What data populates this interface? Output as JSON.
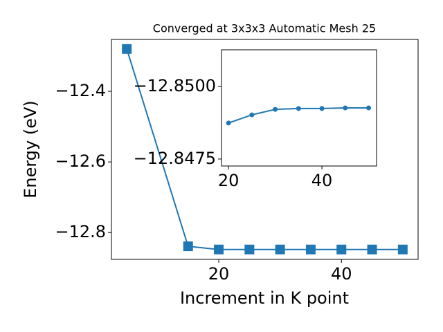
{
  "chart_data": [
    {
      "type": "line",
      "title": "Converged at 3x3x3 Automatic Mesh 25",
      "x_label": "Increment in K point",
      "y_label": "Energy (eV)",
      "marker": "square",
      "color": "#1f77b4",
      "x": [
        5,
        15,
        20,
        25,
        30,
        35,
        40,
        45,
        50
      ],
      "values": [
        -12.28,
        -12.839,
        -12.848,
        -12.848,
        -12.848,
        -12.848,
        -12.848,
        -12.848,
        -12.848
      ],
      "xlim": [
        2.5,
        52.5
      ],
      "ylim": [
        -12.876,
        -12.253
      ],
      "xticks": [
        20,
        40
      ],
      "yticks": [
        {
          "value": -12.4,
          "label": "−12.4"
        },
        {
          "value": -12.6,
          "label": "−12.6"
        },
        {
          "value": -12.8,
          "label": "−12.8"
        }
      ]
    },
    {
      "type": "line",
      "marker": "circle",
      "color": "#1f77b4",
      "x": [
        20,
        25,
        30,
        35,
        40,
        45,
        50
      ],
      "values": [
        -12.84874,
        -12.84902,
        -12.84921,
        -12.84924,
        -12.84924,
        -12.84926,
        -12.84926
      ],
      "xlim": [
        18.5,
        51.7
      ],
      "ylim": [
        -12.84726,
        -12.85126
      ],
      "xticks": [
        20,
        40
      ],
      "yticks": [
        {
          "value": -12.85,
          "label": "−12.8500"
        },
        {
          "value": -12.8475,
          "label": "−12.8475"
        }
      ]
    }
  ]
}
